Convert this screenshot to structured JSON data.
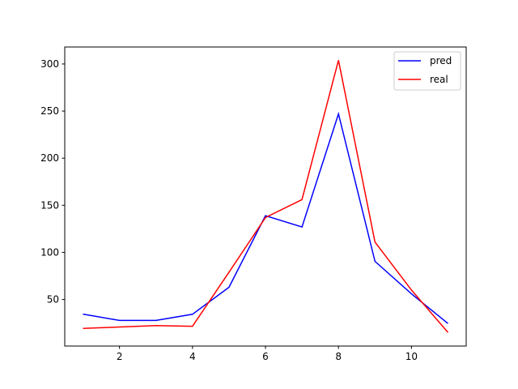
{
  "chart_data": {
    "type": "line",
    "title": "",
    "xlabel": "",
    "ylabel": "",
    "x": [
      1,
      2,
      3,
      4,
      5,
      6,
      7,
      8,
      9,
      10,
      11
    ],
    "xlim": [
      0.5,
      11.5
    ],
    "ylim": [
      0.6,
      318
    ],
    "xticks": [
      2,
      4,
      6,
      8,
      10
    ],
    "yticks": [
      50,
      100,
      150,
      200,
      250,
      300
    ],
    "grid": false,
    "legend_position": "top-right",
    "series": [
      {
        "name": "pred",
        "color": "#0000ff",
        "values": [
          34.5,
          27.8,
          27.8,
          34.3,
          63,
          139,
          127,
          247,
          90.5,
          56,
          24.5
        ]
      },
      {
        "name": "real",
        "color": "#ff0000",
        "values": [
          19.3,
          20.8,
          22.3,
          21.6,
          79,
          137,
          156,
          304,
          111,
          60,
          15
        ]
      }
    ]
  }
}
